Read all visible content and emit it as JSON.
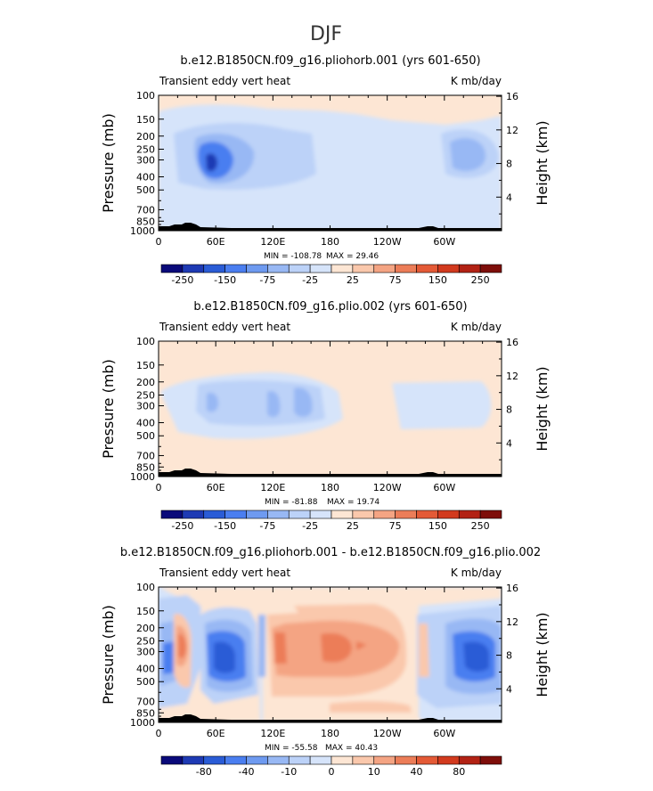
{
  "page": {
    "title": "DJF"
  },
  "chart_data": [
    {
      "type": "heatmap",
      "title": "b.e12.B1850CN.f09_g16.pliohorb.001 (yrs 601-650)",
      "left_string": "Transient eddy vert heat",
      "right_string": "K mb/day",
      "ylabel": "Pressure (mb)",
      "ylabel_right": "Height (km)",
      "x_ticks": [
        "0",
        "60E",
        "120E",
        "180",
        "120W",
        "60W"
      ],
      "y_ticks": [
        "100",
        "150",
        "200",
        "250",
        "300",
        "400",
        "500",
        "700",
        "850",
        "1000"
      ],
      "y_ticks_right": [
        "16",
        "12",
        "8",
        "4"
      ],
      "stats": {
        "min_label": "MIN = -108.78",
        "max_label": "MAX =  29.46",
        "min": -108.78,
        "max": 29.46
      },
      "colorbar": {
        "colors": [
          "#0a0a7a",
          "#1e3ab4",
          "#2a5cd6",
          "#4a7ef0",
          "#6e9af0",
          "#98b8f4",
          "#bcd2f8",
          "#d6e4fa",
          "#fde6d4",
          "#fac8ac",
          "#f4a483",
          "#ec7d58",
          "#e45a36",
          "#d23a1e",
          "#b22214",
          "#7e0e0a"
        ],
        "labels": [
          "-250",
          "-150",
          "-75",
          "-25",
          "25",
          "75",
          "150",
          "250"
        ]
      }
    },
    {
      "type": "heatmap",
      "title": "b.e12.B1850CN.f09_g16.plio.002 (yrs 601-650)",
      "left_string": "Transient eddy vert heat",
      "right_string": "K mb/day",
      "ylabel": "Pressure (mb)",
      "ylabel_right": "Height (km)",
      "x_ticks": [
        "0",
        "60E",
        "120E",
        "180",
        "120W",
        "60W"
      ],
      "y_ticks": [
        "100",
        "150",
        "200",
        "250",
        "300",
        "400",
        "500",
        "700",
        "850",
        "1000"
      ],
      "y_ticks_right": [
        "16",
        "12",
        "8",
        "4"
      ],
      "stats": {
        "min_label": "MIN = -81.88",
        "max_label": "MAX =  19.74",
        "min": -81.88,
        "max": 19.74
      },
      "colorbar": {
        "colors": [
          "#0a0a7a",
          "#1e3ab4",
          "#2a5cd6",
          "#4a7ef0",
          "#6e9af0",
          "#98b8f4",
          "#bcd2f8",
          "#d6e4fa",
          "#fde6d4",
          "#fac8ac",
          "#f4a483",
          "#ec7d58",
          "#e45a36",
          "#d23a1e",
          "#b22214",
          "#7e0e0a"
        ],
        "labels": [
          "-250",
          "-150",
          "-75",
          "-25",
          "25",
          "75",
          "150",
          "250"
        ]
      }
    },
    {
      "type": "heatmap",
      "title": "b.e12.B1850CN.f09_g16.pliohorb.001 - b.e12.B1850CN.f09_g16.plio.002",
      "left_string": "Transient eddy vert heat",
      "right_string": "K mb/day",
      "ylabel": "Pressure (mb)",
      "ylabel_right": "Height (km)",
      "x_ticks": [
        "0",
        "60E",
        "120E",
        "180",
        "120W",
        "60W"
      ],
      "y_ticks": [
        "100",
        "150",
        "200",
        "250",
        "300",
        "400",
        "500",
        "700",
        "850",
        "1000"
      ],
      "y_ticks_right": [
        "16",
        "12",
        "8",
        "4"
      ],
      "stats": {
        "min_label": "MIN = -55.58",
        "max_label": "MAX =  40.43",
        "min": -55.58,
        "max": 40.43
      },
      "colorbar": {
        "colors": [
          "#0a0a7a",
          "#1e3ab4",
          "#2a5cd6",
          "#4a7ef0",
          "#6e9af0",
          "#98b8f4",
          "#bcd2f8",
          "#d6e4fa",
          "#fde6d4",
          "#fac8ac",
          "#f4a483",
          "#ec7d58",
          "#e45a36",
          "#d23a1e",
          "#b22214",
          "#7e0e0a"
        ],
        "labels": [
          "-80",
          "-40",
          "-10",
          "0",
          "10",
          "40",
          "80"
        ]
      }
    }
  ]
}
